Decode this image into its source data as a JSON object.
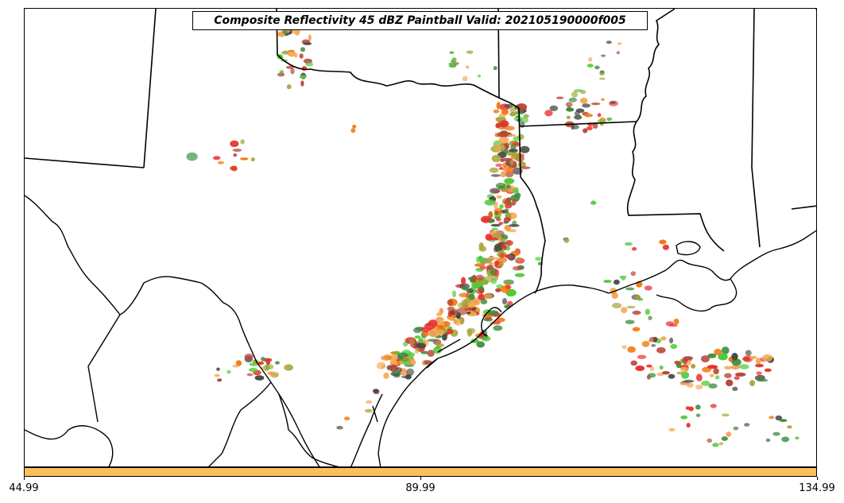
{
  "title": "Composite Reflectivity 45 dBZ Paintball Valid: 202105190000f005",
  "colors": {
    "background": "#ffffff",
    "borders": "#000000",
    "colorbar_fill": "#fcbf5b",
    "paintball_palette": [
      "#e8312e",
      "#f07b12",
      "#f5a952",
      "#51c93a",
      "#3a8c3a",
      "#a8a33a",
      "#b8463c",
      "#4a4a44"
    ]
  },
  "colorbar": {
    "ticks": [
      "44.99",
      "89.99",
      "134.99"
    ],
    "tick_values": [
      44.99,
      89.99,
      134.99
    ],
    "range": [
      44.99,
      134.99
    ]
  },
  "map": {
    "region": "southern-plains-gulf-coast",
    "layers": [
      "state-borders",
      "coastline",
      "international-border",
      "paintball-reflectivity"
    ]
  }
}
